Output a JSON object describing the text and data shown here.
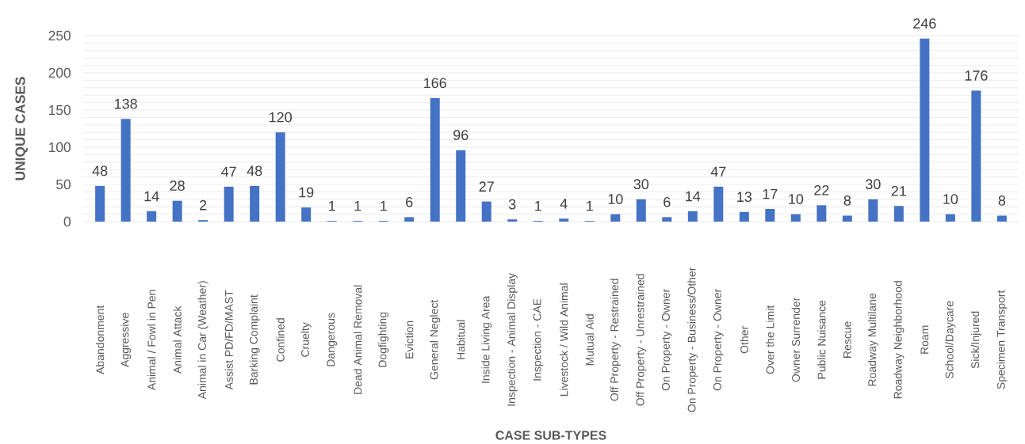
{
  "chart_data": {
    "type": "bar",
    "xlabel": "CASE SUB-TYPES",
    "ylabel": "UNIQUE CASES",
    "categories": [
      "Abandonment",
      "Aggressive",
      "Animal / Fowl in Pen",
      "Animal Attack",
      "Animal in Car (Weather)",
      "Assist PD/FD/MAST",
      "Barking Complaint",
      "Confined",
      "Cruelty",
      "Dangerous",
      "Dead Animal Removal",
      "Dogfighting",
      "Eviction",
      "General Neglect",
      "Habitual",
      "Inside Living Area",
      "Inspection - Animal Display",
      "Inspection - CAE",
      "Livestock / Wild Animal",
      "Mutual Aid",
      "Off Property - Restrained",
      "Off Property - Unrestrained",
      "On Property - Owner",
      "On Property - Business/Other",
      "On Property - Owner",
      "Other",
      "Over the Limit",
      "Owner Surrender",
      "Public Nuisance",
      "Rescue",
      "Roadway Multilane",
      "Roadway Neighborhood",
      "Roam",
      "School/Daycare",
      "Sick/Injured",
      "Specimen Transport"
    ],
    "values": [
      48,
      138,
      14,
      28,
      2,
      47,
      48,
      120,
      19,
      1,
      1,
      1,
      6,
      166,
      96,
      27,
      3,
      1,
      4,
      1,
      10,
      30,
      6,
      14,
      47,
      13,
      17,
      10,
      22,
      8,
      30,
      21,
      246,
      10,
      176,
      8
    ],
    "color": "#4472c4",
    "data_labels": true,
    "grid": "y",
    "ylim": [
      0,
      250
    ],
    "yticks": [
      0,
      {
        "value": 10,
        "label": null
      },
      {
        "value": 20,
        "label": null
      },
      {
        "value": 30,
        "label": null
      },
      {
        "value": 40,
        "label": null
      },
      50,
      {
        "value": 60,
        "label": null
      },
      {
        "value": 70,
        "label": null
      },
      {
        "value": 80,
        "label": null
      },
      {
        "value": 90,
        "label": null
      },
      100,
      {
        "value": 110,
        "label": null
      },
      {
        "value": 120,
        "label": null
      },
      {
        "value": 130,
        "label": null
      },
      {
        "value": 140,
        "label": null
      },
      150,
      {
        "value": 160,
        "label": null
      },
      {
        "value": 170,
        "label": null
      },
      {
        "value": 180,
        "label": null
      },
      {
        "value": 190,
        "label": null
      },
      200,
      {
        "value": 210,
        "label": null
      },
      {
        "value": 220,
        "label": null
      },
      {
        "value": 230,
        "label": null
      },
      {
        "value": 240,
        "label": null
      },
      250
    ]
  }
}
